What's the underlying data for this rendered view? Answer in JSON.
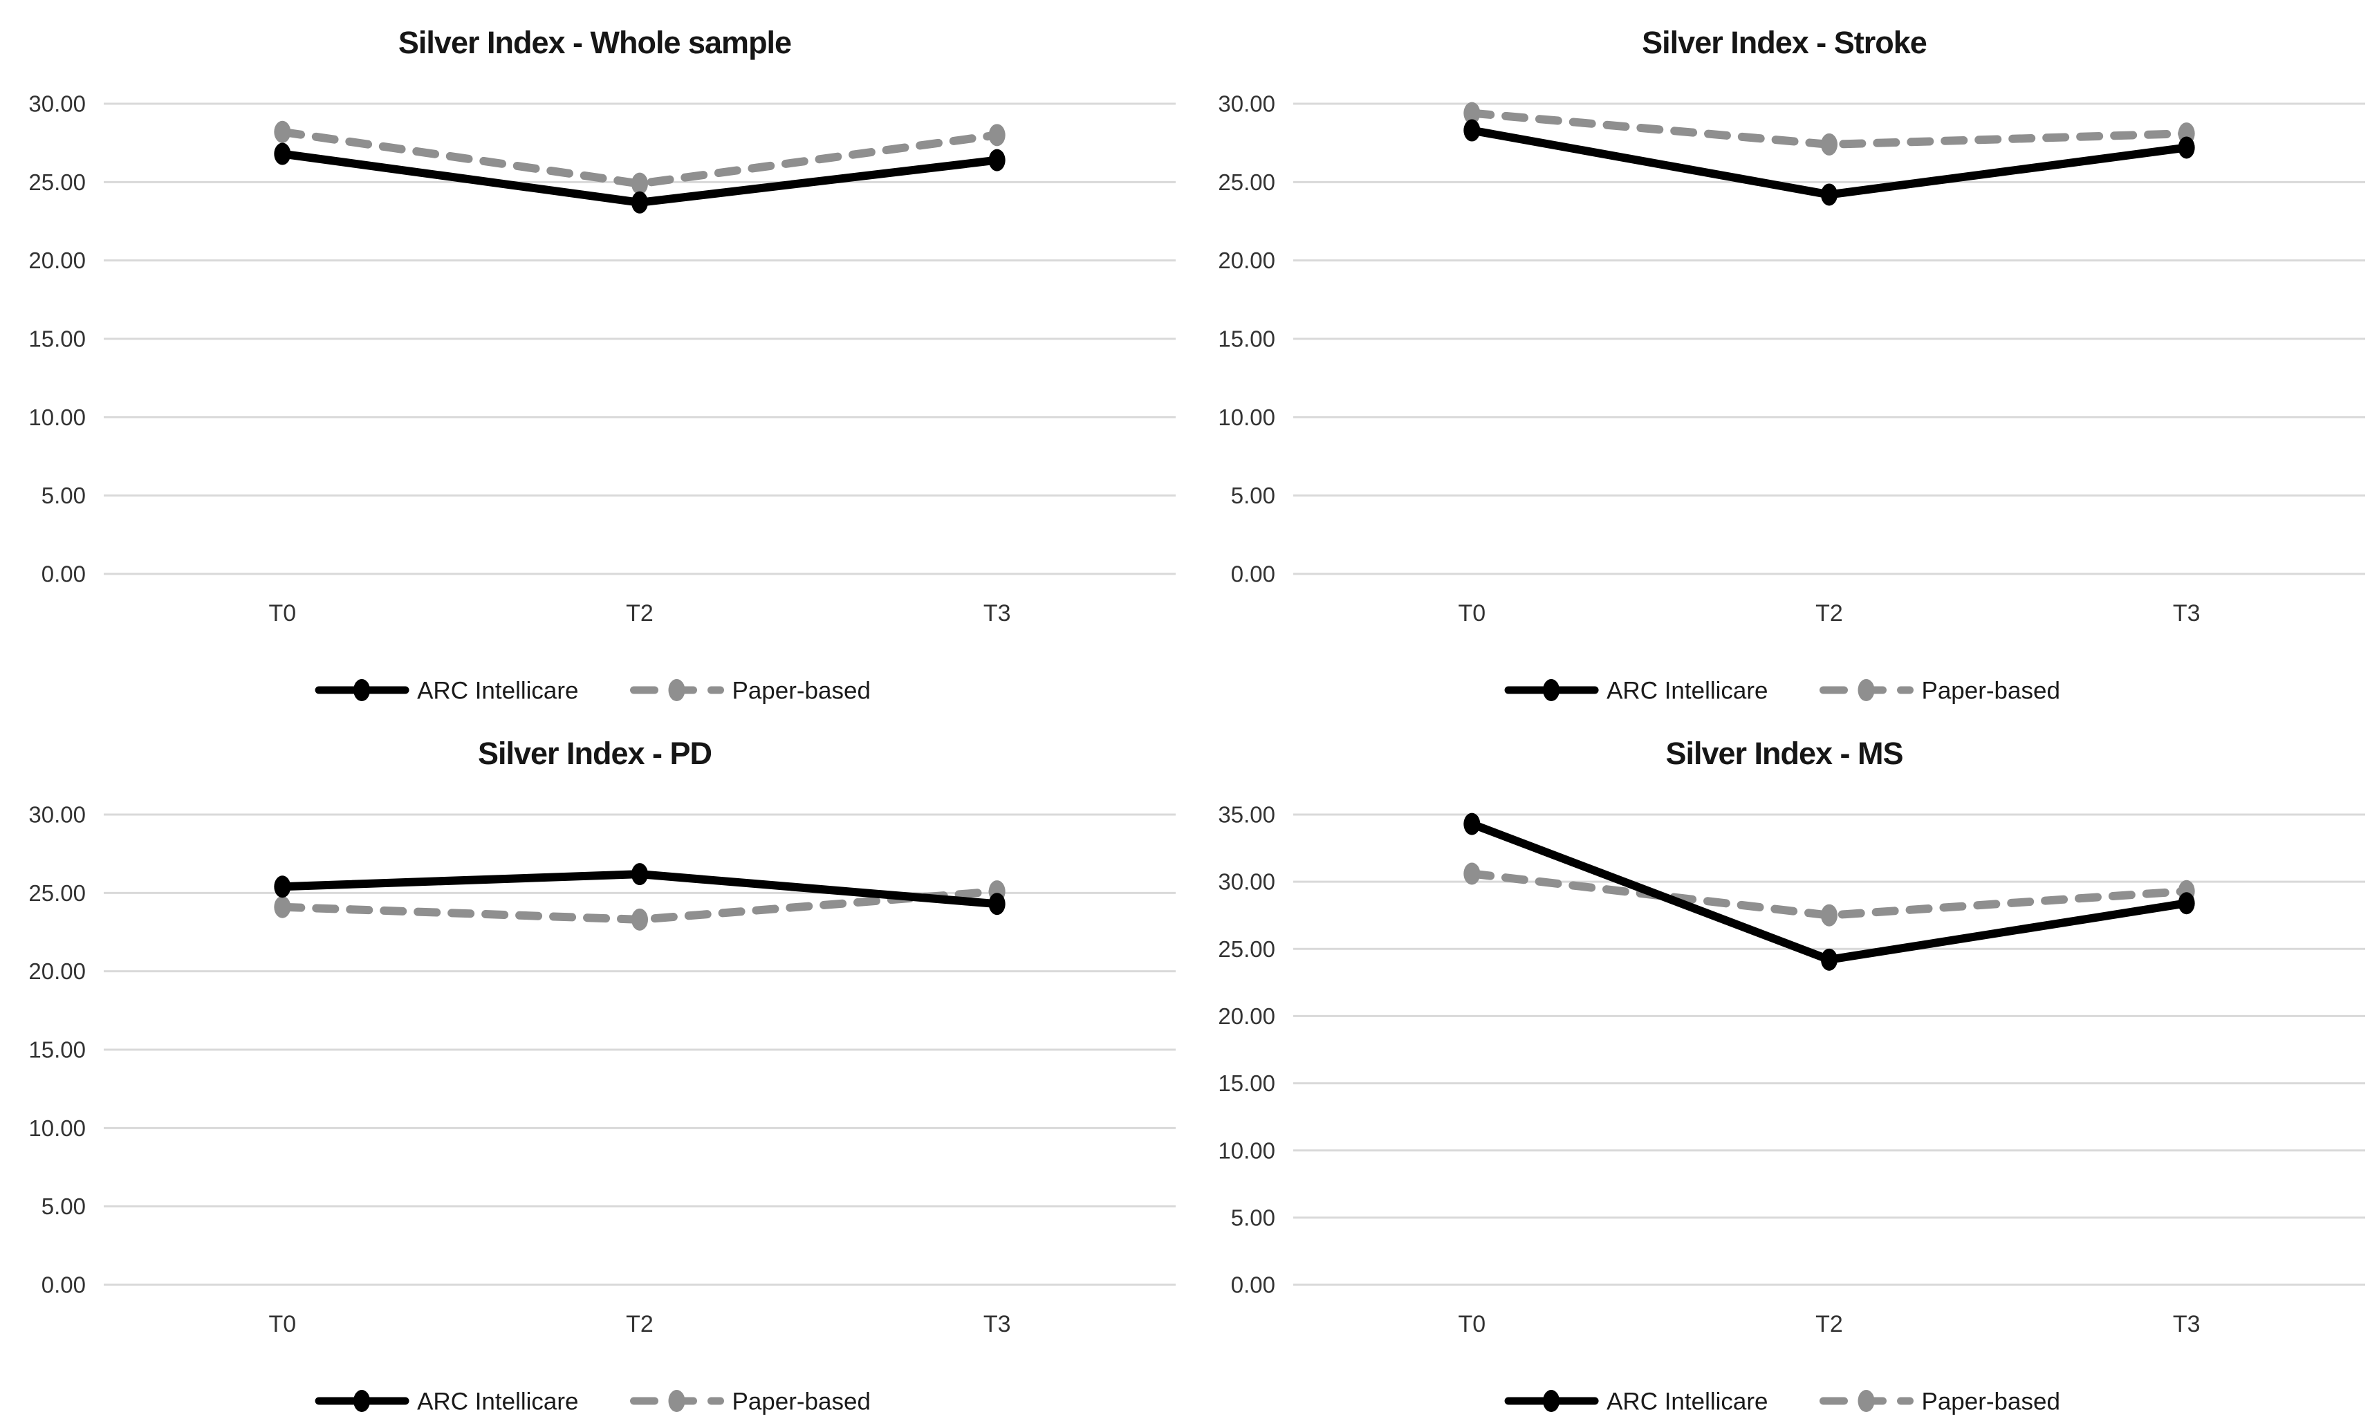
{
  "theme": {
    "background": "#ffffff",
    "gridline_color": "#d9d9d9",
    "axis_text_color": "#333333",
    "legend_text_color": "#1a1a1a",
    "arc_series_color": "#000000",
    "paper_series_color": "#8f8f8f"
  },
  "chart_data": [
    {
      "type": "line",
      "title": "Silver Index - Whole sample",
      "x_categories": [
        "T0",
        "T2",
        "T3"
      ],
      "ylim": [
        0,
        30
      ],
      "ytick_step": 5,
      "ytick_labels": [
        "0.00",
        "5.00",
        "10.00",
        "15.00",
        "20.00",
        "25.00",
        "30.00"
      ],
      "grid": true,
      "legend_position": "bottom",
      "series": [
        {
          "name": "ARC Intellicare",
          "style": "solid",
          "color": "#000000",
          "values": [
            26.8,
            23.7,
            26.4
          ]
        },
        {
          "name": "Paper-based",
          "style": "dashed",
          "color": "#8f8f8f",
          "values": [
            28.2,
            24.9,
            28.0
          ]
        }
      ]
    },
    {
      "type": "line",
      "title": "Silver Index - Stroke",
      "x_categories": [
        "T0",
        "T2",
        "T3"
      ],
      "ylim": [
        0,
        30
      ],
      "ytick_step": 5,
      "ytick_labels": [
        "0.00",
        "5.00",
        "10.00",
        "15.00",
        "20.00",
        "25.00",
        "30.00"
      ],
      "grid": true,
      "legend_position": "bottom",
      "series": [
        {
          "name": "ARC Intellicare",
          "style": "solid",
          "color": "#000000",
          "values": [
            28.3,
            24.2,
            27.2
          ]
        },
        {
          "name": "Paper-based",
          "style": "dashed",
          "color": "#8f8f8f",
          "values": [
            29.4,
            27.4,
            28.1
          ]
        }
      ]
    },
    {
      "type": "line",
      "title": "Silver Index - PD",
      "x_categories": [
        "T0",
        "T2",
        "T3"
      ],
      "ylim": [
        0,
        30
      ],
      "ytick_step": 5,
      "ytick_labels": [
        "0.00",
        "5.00",
        "10.00",
        "15.00",
        "20.00",
        "25.00",
        "30.00"
      ],
      "grid": true,
      "legend_position": "bottom",
      "series": [
        {
          "name": "ARC Intellicare",
          "style": "solid",
          "color": "#000000",
          "values": [
            25.4,
            26.2,
            24.3
          ]
        },
        {
          "name": "Paper-based",
          "style": "dashed",
          "color": "#8f8f8f",
          "values": [
            24.1,
            23.3,
            25.1
          ]
        }
      ]
    },
    {
      "type": "line",
      "title": "Silver Index - MS",
      "x_categories": [
        "T0",
        "T2",
        "T3"
      ],
      "ylim": [
        0,
        35
      ],
      "ytick_step": 5,
      "ytick_labels": [
        "0.00",
        "5.00",
        "10.00",
        "15.00",
        "20.00",
        "25.00",
        "30.00",
        "35.00"
      ],
      "grid": true,
      "legend_position": "bottom",
      "series": [
        {
          "name": "ARC Intellicare",
          "style": "solid",
          "color": "#000000",
          "values": [
            34.3,
            24.2,
            28.4
          ]
        },
        {
          "name": "Paper-based",
          "style": "dashed",
          "color": "#8f8f8f",
          "values": [
            30.6,
            27.5,
            29.3
          ]
        }
      ]
    }
  ]
}
